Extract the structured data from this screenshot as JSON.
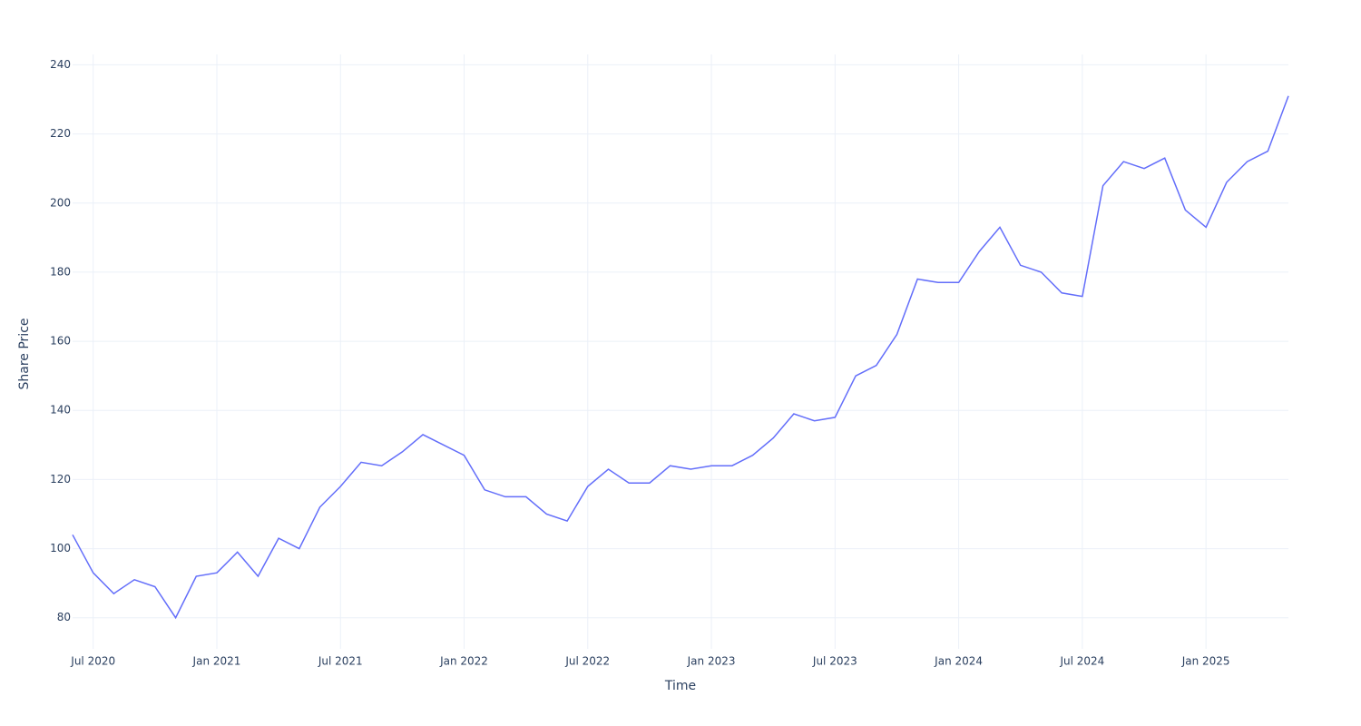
{
  "chart_data": {
    "type": "line",
    "x_title": "Time",
    "y_title": "Share Price",
    "x": [
      "2020-06",
      "2020-07",
      "2020-08",
      "2020-09",
      "2020-10",
      "2020-11",
      "2020-12",
      "2021-01",
      "2021-02",
      "2021-03",
      "2021-04",
      "2021-05",
      "2021-06",
      "2021-07",
      "2021-08",
      "2021-09",
      "2021-10",
      "2021-11",
      "2021-12",
      "2022-01",
      "2022-02",
      "2022-03",
      "2022-04",
      "2022-05",
      "2022-06",
      "2022-07",
      "2022-08",
      "2022-09",
      "2022-10",
      "2022-11",
      "2022-12",
      "2023-01",
      "2023-02",
      "2023-03",
      "2023-04",
      "2023-05",
      "2023-06",
      "2023-07",
      "2023-08",
      "2023-09",
      "2023-10",
      "2023-11",
      "2023-12",
      "2024-01",
      "2024-02",
      "2024-03",
      "2024-04",
      "2024-05",
      "2024-06",
      "2024-07",
      "2024-08",
      "2024-09",
      "2024-10",
      "2024-11",
      "2024-12",
      "2025-01",
      "2025-02",
      "2025-03",
      "2025-04",
      "2025-05"
    ],
    "series": [
      {
        "color": "#636efa",
        "values": [
          104,
          93,
          87,
          91,
          89,
          80,
          92,
          93,
          99,
          92,
          103,
          100,
          112,
          118,
          125,
          124,
          128,
          133,
          130,
          127,
          117,
          115,
          115,
          110,
          108,
          118,
          123,
          119,
          119,
          124,
          123,
          124,
          124,
          127,
          132,
          139,
          137,
          138,
          150,
          153,
          162,
          178,
          177,
          177,
          186,
          193,
          182,
          180,
          174,
          173,
          205,
          212,
          210,
          213,
          198,
          193,
          206,
          212,
          215,
          231
        ]
      }
    ],
    "xlim": [
      "2020-06",
      "2025-05"
    ],
    "xticks": [
      {
        "value": "2020-07",
        "label": "Jul 2020"
      },
      {
        "value": "2021-01",
        "label": "Jan 2021"
      },
      {
        "value": "2021-07",
        "label": "Jul 2021"
      },
      {
        "value": "2022-01",
        "label": "Jan 2022"
      },
      {
        "value": "2022-07",
        "label": "Jul 2022"
      },
      {
        "value": "2023-01",
        "label": "Jan 2023"
      },
      {
        "value": "2023-07",
        "label": "Jul 2023"
      },
      {
        "value": "2024-01",
        "label": "Jan 2024"
      },
      {
        "value": "2024-07",
        "label": "Jul 2024"
      },
      {
        "value": "2025-01",
        "label": "Jan 2025"
      }
    ],
    "ylim": [
      71,
      243
    ],
    "yticks": [
      80,
      100,
      120,
      140,
      160,
      180,
      200,
      220,
      240
    ],
    "grid": true
  }
}
